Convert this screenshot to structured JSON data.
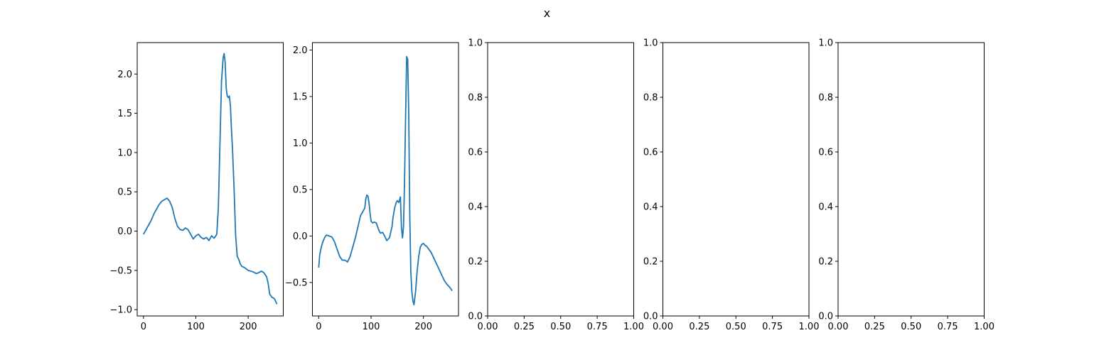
{
  "chart_data": {
    "suptitle": "x",
    "line_color": "#1f77b4",
    "panels": [
      {
        "type": "line",
        "xlim": [
          -12,
          267
        ],
        "ylim": [
          -1.08,
          2.4
        ],
        "xticks": [
          0,
          100,
          200
        ],
        "xtick_labels": [
          "0",
          "100",
          "200"
        ],
        "yticks": [
          -1.0,
          -0.5,
          0.0,
          0.5,
          1.0,
          1.5,
          2.0
        ],
        "ytick_labels": [
          "−1.0",
          "−0.5",
          "0.0",
          "0.5",
          "1.0",
          "1.5",
          "2.0"
        ],
        "series": [
          {
            "x": [
              0,
              5,
              10,
              15,
              20,
              25,
              30,
              35,
              40,
              45,
              50,
              55,
              60,
              65,
              70,
              75,
              80,
              85,
              90,
              95,
              100,
              105,
              110,
              115,
              120,
              125,
              130,
              135,
              140,
              143,
              146,
              149,
              152,
              154,
              156,
              158,
              160,
              162,
              164,
              166,
              168,
              170,
              173,
              176,
              179,
              182,
              185,
              188,
              192,
              196,
              200,
              205,
              210,
              215,
              220,
              225,
              230,
              235,
              238,
              241,
              245,
              250,
              255
            ],
            "y": [
              -0.04,
              0.02,
              0.08,
              0.14,
              0.22,
              0.28,
              0.34,
              0.38,
              0.4,
              0.42,
              0.38,
              0.3,
              0.16,
              0.06,
              0.02,
              0.01,
              0.04,
              0.02,
              -0.04,
              -0.1,
              -0.06,
              -0.04,
              -0.08,
              -0.1,
              -0.08,
              -0.12,
              -0.06,
              -0.09,
              -0.04,
              0.3,
              1.1,
              1.9,
              2.2,
              2.26,
              2.15,
              1.82,
              1.72,
              1.7,
              1.72,
              1.6,
              1.3,
              1.05,
              0.55,
              -0.05,
              -0.32,
              -0.36,
              -0.42,
              -0.45,
              -0.46,
              -0.48,
              -0.5,
              -0.51,
              -0.52,
              -0.54,
              -0.53,
              -0.51,
              -0.53,
              -0.58,
              -0.66,
              -0.8,
              -0.84,
              -0.86,
              -0.93
            ]
          }
        ]
      },
      {
        "type": "line",
        "xlim": [
          -12,
          267
        ],
        "ylim": [
          -0.86,
          2.08
        ],
        "xticks": [
          0,
          100,
          200
        ],
        "xtick_labels": [
          "0",
          "100",
          "200"
        ],
        "yticks": [
          -0.5,
          0.0,
          0.5,
          1.0,
          1.5,
          2.0
        ],
        "ytick_labels": [
          "−0.5",
          "0.0",
          "0.5",
          "1.0",
          "1.5",
          "2.0"
        ],
        "series": [
          {
            "x": [
              0,
              2,
              5,
              8,
              12,
              15,
              20,
              25,
              30,
              35,
              40,
              45,
              50,
              55,
              60,
              65,
              70,
              75,
              80,
              85,
              88,
              90,
              92,
              94,
              96,
              98,
              100,
              103,
              106,
              110,
              115,
              118,
              122,
              126,
              130,
              135,
              138,
              140,
              142,
              145,
              148,
              150,
              153,
              156,
              158,
              160,
              162,
              164,
              166,
              168,
              170,
              172,
              174,
              176,
              178,
              180,
              182,
              185,
              188,
              191,
              194,
              197,
              200,
              203,
              206,
              210,
              215,
              220,
              225,
              230,
              235,
              240,
              245,
              250,
              255
            ],
            "y": [
              -0.34,
              -0.2,
              -0.12,
              -0.06,
              -0.01,
              0.01,
              0.0,
              -0.01,
              -0.06,
              -0.14,
              -0.22,
              -0.26,
              -0.26,
              -0.28,
              -0.22,
              -0.12,
              -0.02,
              0.1,
              0.22,
              0.27,
              0.3,
              0.4,
              0.44,
              0.43,
              0.36,
              0.25,
              0.16,
              0.14,
              0.15,
              0.14,
              0.06,
              0.03,
              0.04,
              0.0,
              -0.05,
              -0.02,
              0.05,
              0.1,
              0.2,
              0.3,
              0.36,
              0.38,
              0.36,
              0.42,
              0.1,
              -0.02,
              0.1,
              0.6,
              1.3,
              1.93,
              1.9,
              1.3,
              0.2,
              -0.4,
              -0.6,
              -0.7,
              -0.74,
              -0.6,
              -0.38,
              -0.22,
              -0.12,
              -0.09,
              -0.08,
              -0.1,
              -0.11,
              -0.14,
              -0.18,
              -0.24,
              -0.3,
              -0.36,
              -0.42,
              -0.48,
              -0.52,
              -0.55,
              -0.59
            ]
          }
        ]
      },
      {
        "type": "line",
        "xlim": [
          0,
          1
        ],
        "ylim": [
          0,
          1
        ],
        "xticks": [
          0,
          0.25,
          0.5,
          0.75,
          1.0
        ],
        "xtick_labels": [
          "0.00",
          "0.25",
          "0.50",
          "0.75",
          "1.00"
        ],
        "yticks": [
          0,
          0.2,
          0.4,
          0.6,
          0.8,
          1.0
        ],
        "ytick_labels": [
          "0.0",
          "0.2",
          "0.4",
          "0.6",
          "0.8",
          "1.0"
        ],
        "series": []
      },
      {
        "type": "line",
        "xlim": [
          0,
          1
        ],
        "ylim": [
          0,
          1
        ],
        "xticks": [
          0,
          0.25,
          0.5,
          0.75,
          1.0
        ],
        "xtick_labels": [
          "0.00",
          "0.25",
          "0.50",
          "0.75",
          "1.00"
        ],
        "yticks": [
          0,
          0.2,
          0.4,
          0.6,
          0.8,
          1.0
        ],
        "ytick_labels": [
          "0.0",
          "0.2",
          "0.4",
          "0.6",
          "0.8",
          "1.0"
        ],
        "series": []
      },
      {
        "type": "line",
        "xlim": [
          0,
          1
        ],
        "ylim": [
          0,
          1
        ],
        "xticks": [
          0,
          0.25,
          0.5,
          0.75,
          1.0
        ],
        "xtick_labels": [
          "0.00",
          "0.25",
          "0.50",
          "0.75",
          "1.00"
        ],
        "yticks": [
          0,
          0.2,
          0.4,
          0.6,
          0.8,
          1.0
        ],
        "ytick_labels": [
          "0.0",
          "0.2",
          "0.4",
          "0.6",
          "0.8",
          "1.0"
        ],
        "series": []
      }
    ]
  }
}
